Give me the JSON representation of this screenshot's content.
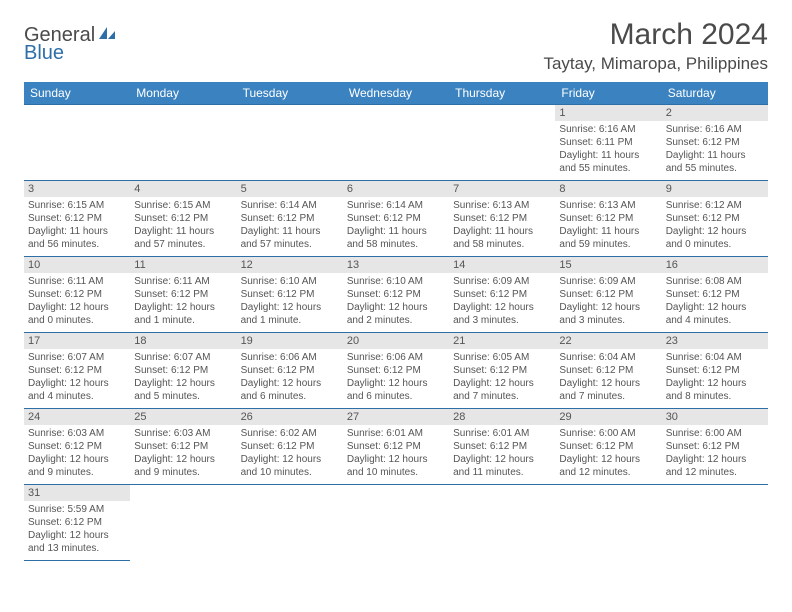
{
  "logo": {
    "text1": "General",
    "text2": "Blue"
  },
  "title": "March 2024",
  "location": "Taytay, Mimaropa, Philippines",
  "colors": {
    "header_bg": "#3b83c0",
    "header_text": "#ffffff",
    "border": "#2f6fa8",
    "daynum_bg": "#e6e6e6",
    "body_text": "#555555",
    "page_bg": "#ffffff"
  },
  "typography": {
    "title_fontsize": 30,
    "location_fontsize": 17,
    "weekday_fontsize": 12,
    "cell_fontsize": 10
  },
  "weekdays": [
    "Sunday",
    "Monday",
    "Tuesday",
    "Wednesday",
    "Thursday",
    "Friday",
    "Saturday"
  ],
  "weeks": [
    [
      null,
      null,
      null,
      null,
      null,
      {
        "n": "1",
        "sr": "Sunrise: 6:16 AM",
        "ss": "Sunset: 6:11 PM",
        "dl": "Daylight: 11 hours and 55 minutes."
      },
      {
        "n": "2",
        "sr": "Sunrise: 6:16 AM",
        "ss": "Sunset: 6:12 PM",
        "dl": "Daylight: 11 hours and 55 minutes."
      }
    ],
    [
      {
        "n": "3",
        "sr": "Sunrise: 6:15 AM",
        "ss": "Sunset: 6:12 PM",
        "dl": "Daylight: 11 hours and 56 minutes."
      },
      {
        "n": "4",
        "sr": "Sunrise: 6:15 AM",
        "ss": "Sunset: 6:12 PM",
        "dl": "Daylight: 11 hours and 57 minutes."
      },
      {
        "n": "5",
        "sr": "Sunrise: 6:14 AM",
        "ss": "Sunset: 6:12 PM",
        "dl": "Daylight: 11 hours and 57 minutes."
      },
      {
        "n": "6",
        "sr": "Sunrise: 6:14 AM",
        "ss": "Sunset: 6:12 PM",
        "dl": "Daylight: 11 hours and 58 minutes."
      },
      {
        "n": "7",
        "sr": "Sunrise: 6:13 AM",
        "ss": "Sunset: 6:12 PM",
        "dl": "Daylight: 11 hours and 58 minutes."
      },
      {
        "n": "8",
        "sr": "Sunrise: 6:13 AM",
        "ss": "Sunset: 6:12 PM",
        "dl": "Daylight: 11 hours and 59 minutes."
      },
      {
        "n": "9",
        "sr": "Sunrise: 6:12 AM",
        "ss": "Sunset: 6:12 PM",
        "dl": "Daylight: 12 hours and 0 minutes."
      }
    ],
    [
      {
        "n": "10",
        "sr": "Sunrise: 6:11 AM",
        "ss": "Sunset: 6:12 PM",
        "dl": "Daylight: 12 hours and 0 minutes."
      },
      {
        "n": "11",
        "sr": "Sunrise: 6:11 AM",
        "ss": "Sunset: 6:12 PM",
        "dl": "Daylight: 12 hours and 1 minute."
      },
      {
        "n": "12",
        "sr": "Sunrise: 6:10 AM",
        "ss": "Sunset: 6:12 PM",
        "dl": "Daylight: 12 hours and 1 minute."
      },
      {
        "n": "13",
        "sr": "Sunrise: 6:10 AM",
        "ss": "Sunset: 6:12 PM",
        "dl": "Daylight: 12 hours and 2 minutes."
      },
      {
        "n": "14",
        "sr": "Sunrise: 6:09 AM",
        "ss": "Sunset: 6:12 PM",
        "dl": "Daylight: 12 hours and 3 minutes."
      },
      {
        "n": "15",
        "sr": "Sunrise: 6:09 AM",
        "ss": "Sunset: 6:12 PM",
        "dl": "Daylight: 12 hours and 3 minutes."
      },
      {
        "n": "16",
        "sr": "Sunrise: 6:08 AM",
        "ss": "Sunset: 6:12 PM",
        "dl": "Daylight: 12 hours and 4 minutes."
      }
    ],
    [
      {
        "n": "17",
        "sr": "Sunrise: 6:07 AM",
        "ss": "Sunset: 6:12 PM",
        "dl": "Daylight: 12 hours and 4 minutes."
      },
      {
        "n": "18",
        "sr": "Sunrise: 6:07 AM",
        "ss": "Sunset: 6:12 PM",
        "dl": "Daylight: 12 hours and 5 minutes."
      },
      {
        "n": "19",
        "sr": "Sunrise: 6:06 AM",
        "ss": "Sunset: 6:12 PM",
        "dl": "Daylight: 12 hours and 6 minutes."
      },
      {
        "n": "20",
        "sr": "Sunrise: 6:06 AM",
        "ss": "Sunset: 6:12 PM",
        "dl": "Daylight: 12 hours and 6 minutes."
      },
      {
        "n": "21",
        "sr": "Sunrise: 6:05 AM",
        "ss": "Sunset: 6:12 PM",
        "dl": "Daylight: 12 hours and 7 minutes."
      },
      {
        "n": "22",
        "sr": "Sunrise: 6:04 AM",
        "ss": "Sunset: 6:12 PM",
        "dl": "Daylight: 12 hours and 7 minutes."
      },
      {
        "n": "23",
        "sr": "Sunrise: 6:04 AM",
        "ss": "Sunset: 6:12 PM",
        "dl": "Daylight: 12 hours and 8 minutes."
      }
    ],
    [
      {
        "n": "24",
        "sr": "Sunrise: 6:03 AM",
        "ss": "Sunset: 6:12 PM",
        "dl": "Daylight: 12 hours and 9 minutes."
      },
      {
        "n": "25",
        "sr": "Sunrise: 6:03 AM",
        "ss": "Sunset: 6:12 PM",
        "dl": "Daylight: 12 hours and 9 minutes."
      },
      {
        "n": "26",
        "sr": "Sunrise: 6:02 AM",
        "ss": "Sunset: 6:12 PM",
        "dl": "Daylight: 12 hours and 10 minutes."
      },
      {
        "n": "27",
        "sr": "Sunrise: 6:01 AM",
        "ss": "Sunset: 6:12 PM",
        "dl": "Daylight: 12 hours and 10 minutes."
      },
      {
        "n": "28",
        "sr": "Sunrise: 6:01 AM",
        "ss": "Sunset: 6:12 PM",
        "dl": "Daylight: 12 hours and 11 minutes."
      },
      {
        "n": "29",
        "sr": "Sunrise: 6:00 AM",
        "ss": "Sunset: 6:12 PM",
        "dl": "Daylight: 12 hours and 12 minutes."
      },
      {
        "n": "30",
        "sr": "Sunrise: 6:00 AM",
        "ss": "Sunset: 6:12 PM",
        "dl": "Daylight: 12 hours and 12 minutes."
      }
    ],
    [
      {
        "n": "31",
        "sr": "Sunrise: 5:59 AM",
        "ss": "Sunset: 6:12 PM",
        "dl": "Daylight: 12 hours and 13 minutes."
      },
      null,
      null,
      null,
      null,
      null,
      null
    ]
  ]
}
